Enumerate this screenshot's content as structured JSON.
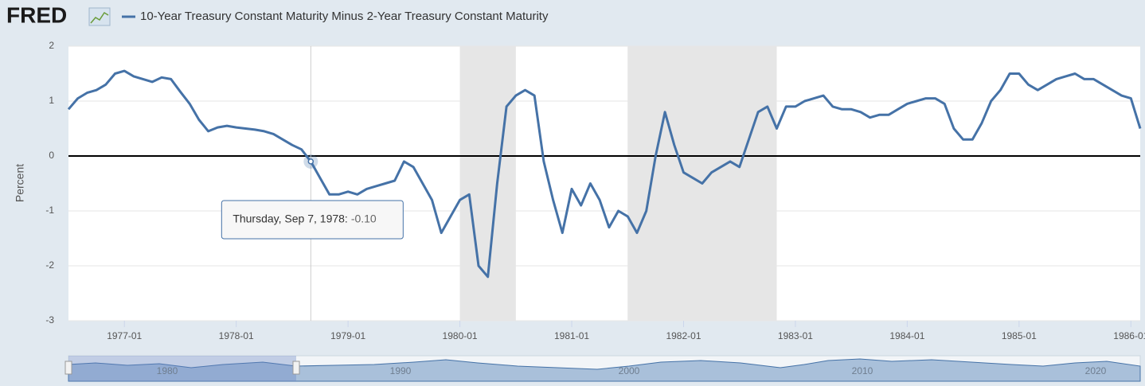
{
  "chart_data": {
    "type": "line",
    "logo": "FRED",
    "title": "10-Year Treasury Constant Maturity Minus 2-Year Treasury Constant Maturity",
    "ylabel": "Percent",
    "x": [
      "1976-07",
      "1976-08",
      "1976-09",
      "1976-10",
      "1976-11",
      "1976-12",
      "1977-01",
      "1977-02",
      "1977-03",
      "1977-04",
      "1977-05",
      "1977-06",
      "1977-07",
      "1977-08",
      "1977-09",
      "1977-10",
      "1977-11",
      "1977-12",
      "1978-01",
      "1978-02",
      "1978-03",
      "1978-04",
      "1978-05",
      "1978-06",
      "1978-07",
      "1978-08",
      "1978-09",
      "1978-10",
      "1978-11",
      "1978-12",
      "1979-01",
      "1979-02",
      "1979-03",
      "1979-04",
      "1979-05",
      "1979-06",
      "1979-07",
      "1979-08",
      "1979-09",
      "1979-10",
      "1979-11",
      "1979-12",
      "1980-01",
      "1980-02",
      "1980-03",
      "1980-04",
      "1980-05",
      "1980-06",
      "1980-07",
      "1980-08",
      "1980-09",
      "1980-10",
      "1980-11",
      "1980-12",
      "1981-01",
      "1981-02",
      "1981-03",
      "1981-04",
      "1981-05",
      "1981-06",
      "1981-07",
      "1981-08",
      "1981-09",
      "1981-10",
      "1981-11",
      "1981-12",
      "1982-01",
      "1982-02",
      "1982-03",
      "1982-04",
      "1982-05",
      "1982-06",
      "1982-07",
      "1982-08",
      "1982-09",
      "1982-10",
      "1982-11",
      "1982-12",
      "1983-01",
      "1983-02",
      "1983-03",
      "1983-04",
      "1983-05",
      "1983-06",
      "1983-07",
      "1983-08",
      "1983-09",
      "1983-10",
      "1983-11",
      "1983-12",
      "1984-01",
      "1984-02",
      "1984-03",
      "1984-04",
      "1984-05",
      "1984-06",
      "1984-07",
      "1984-08",
      "1984-09",
      "1984-10",
      "1984-11",
      "1984-12",
      "1985-01",
      "1985-02",
      "1985-03",
      "1985-04",
      "1985-05",
      "1985-06",
      "1985-07",
      "1985-08",
      "1985-09",
      "1985-10",
      "1985-11",
      "1985-12",
      "1986-01",
      "1986-02"
    ],
    "series": [
      {
        "name": "10-Year Treasury Constant Maturity Minus 2-Year Treasury Constant Maturity",
        "color": "#4572a7",
        "values": [
          0.85,
          1.05,
          1.15,
          1.2,
          1.3,
          1.5,
          1.55,
          1.45,
          1.4,
          1.35,
          1.43,
          1.4,
          1.17,
          0.95,
          0.66,
          0.45,
          0.52,
          0.55,
          0.52,
          0.5,
          0.48,
          0.45,
          0.4,
          0.3,
          0.2,
          0.12,
          -0.1,
          -0.4,
          -0.7,
          -0.7,
          -0.65,
          -0.7,
          -0.6,
          -0.55,
          -0.5,
          -0.45,
          -0.1,
          -0.2,
          -0.5,
          -0.8,
          -1.4,
          -1.1,
          -0.8,
          -0.7,
          -2.0,
          -2.2,
          -0.5,
          0.9,
          1.1,
          1.2,
          1.1,
          -0.1,
          -0.8,
          -1.4,
          -0.6,
          -0.9,
          -0.5,
          -0.8,
          -1.3,
          -1.0,
          -1.1,
          -1.4,
          -1.0,
          0.0,
          0.8,
          0.2,
          -0.3,
          -0.4,
          -0.5,
          -0.3,
          -0.2,
          -0.1,
          -0.2,
          0.3,
          0.8,
          0.9,
          0.5,
          0.9,
          0.9,
          1.0,
          1.05,
          1.1,
          0.9,
          0.85,
          0.85,
          0.8,
          0.7,
          0.75,
          0.75,
          0.85,
          0.95,
          1.0,
          1.05,
          1.05,
          0.95,
          0.5,
          0.3,
          0.3,
          0.6,
          1.0,
          1.2,
          1.5,
          1.5,
          1.3,
          1.2,
          1.3,
          1.4,
          1.45,
          1.5,
          1.4,
          1.4,
          1.3,
          1.2,
          1.1,
          1.05,
          0.5
        ]
      }
    ],
    "xlim": [
      "1976-07",
      "1986-02"
    ],
    "xticks": [
      "1977-01",
      "1978-01",
      "1979-01",
      "1980-01",
      "1981-01",
      "1982-01",
      "1983-01",
      "1984-01",
      "1985-01",
      "1986-01"
    ],
    "ylim": [
      -3,
      2
    ],
    "yticks": [
      -3,
      -2,
      -1,
      0,
      1,
      2
    ],
    "grid": true,
    "zero_line": true,
    "recessions": [
      [
        "1980-01",
        "1980-07"
      ],
      [
        "1981-07",
        "1982-11"
      ]
    ],
    "recession_color": "#e6e6e6",
    "tooltip": {
      "index": 26,
      "label": "Thursday, Sep 7, 1978:",
      "value_label": "-0.10"
    },
    "navigator_labels": [
      "1980",
      "1990",
      "2000",
      "2010",
      "2020"
    ]
  }
}
